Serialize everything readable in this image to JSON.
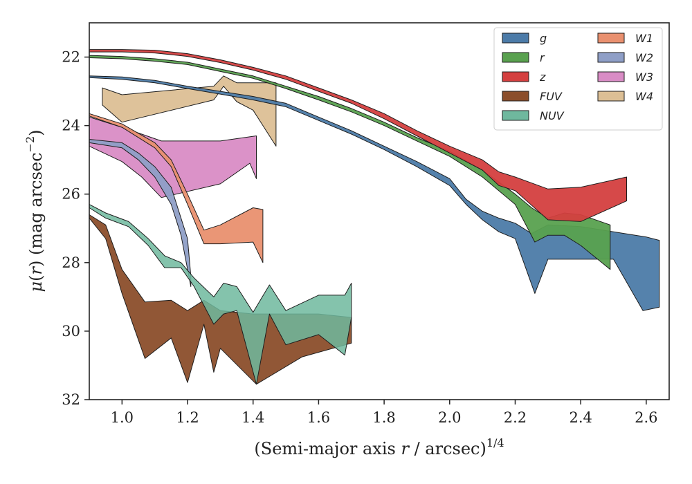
{
  "chart_data": {
    "type": "area",
    "xlabel": "(Semi-major axis r / arcsec)^{1/4}",
    "xlabel_parts": {
      "prefix": "(Semi-major axis ",
      "var": "r",
      "suffix": " / arcsec)",
      "exponent": "1/4"
    },
    "ylabel": "μ(r) (mag arcsec^{-2})",
    "ylabel_parts": {
      "mu": "μ",
      "open": "(",
      "var": "r",
      "close": ") (mag arcsec",
      "exponent": "−2",
      "end": ")"
    },
    "xlim": [
      0.9,
      2.67
    ],
    "ylim": [
      32,
      21
    ],
    "y_inverted": true,
    "xticks": [
      "1.0",
      "1.2",
      "1.4",
      "1.6",
      "1.8",
      "2.0",
      "2.2",
      "2.4",
      "2.6"
    ],
    "yticks": [
      "22",
      "24",
      "26",
      "28",
      "30",
      "32"
    ],
    "legend": {
      "position": "top-right",
      "columns": 2
    },
    "grid": false,
    "series": [
      {
        "name": "g",
        "color": "#4c7ba8",
        "upper": [
          [
            0.9,
            22.55
          ],
          [
            1.0,
            22.58
          ],
          [
            1.1,
            22.68
          ],
          [
            1.2,
            22.85
          ],
          [
            1.3,
            23.0
          ],
          [
            1.4,
            23.15
          ],
          [
            1.5,
            23.35
          ],
          [
            1.6,
            23.75
          ],
          [
            1.7,
            24.15
          ],
          [
            1.8,
            24.6
          ],
          [
            1.9,
            25.05
          ],
          [
            2.0,
            25.55
          ],
          [
            2.05,
            26.15
          ],
          [
            2.1,
            26.5
          ],
          [
            2.15,
            26.7
          ],
          [
            2.2,
            26.85
          ],
          [
            2.25,
            27.15
          ],
          [
            2.3,
            26.9
          ],
          [
            2.4,
            26.95
          ],
          [
            2.5,
            27.1
          ],
          [
            2.6,
            27.25
          ],
          [
            2.64,
            27.35
          ]
        ],
        "lower": [
          [
            0.9,
            22.6
          ],
          [
            1.0,
            22.65
          ],
          [
            1.1,
            22.75
          ],
          [
            1.2,
            22.92
          ],
          [
            1.3,
            23.08
          ],
          [
            1.4,
            23.25
          ],
          [
            1.5,
            23.45
          ],
          [
            1.6,
            23.85
          ],
          [
            1.7,
            24.25
          ],
          [
            1.8,
            24.7
          ],
          [
            1.9,
            25.2
          ],
          [
            2.0,
            25.75
          ],
          [
            2.05,
            26.3
          ],
          [
            2.1,
            26.75
          ],
          [
            2.15,
            27.1
          ],
          [
            2.2,
            27.3
          ],
          [
            2.26,
            28.9
          ],
          [
            2.3,
            27.9
          ],
          [
            2.4,
            27.9
          ],
          [
            2.5,
            27.9
          ],
          [
            2.59,
            29.4
          ],
          [
            2.64,
            29.3
          ]
        ]
      },
      {
        "name": "r",
        "color": "#59a14f",
        "upper": [
          [
            0.9,
            21.95
          ],
          [
            1.0,
            21.98
          ],
          [
            1.1,
            22.05
          ],
          [
            1.2,
            22.15
          ],
          [
            1.3,
            22.35
          ],
          [
            1.4,
            22.55
          ],
          [
            1.5,
            22.85
          ],
          [
            1.6,
            23.15
          ],
          [
            1.7,
            23.5
          ],
          [
            1.8,
            23.9
          ],
          [
            1.9,
            24.35
          ],
          [
            2.0,
            24.75
          ],
          [
            2.1,
            25.3
          ],
          [
            2.2,
            26.0
          ],
          [
            2.25,
            26.4
          ],
          [
            2.3,
            26.7
          ],
          [
            2.35,
            26.55
          ],
          [
            2.4,
            26.6
          ],
          [
            2.49,
            26.9
          ]
        ],
        "lower": [
          [
            0.9,
            22.02
          ],
          [
            1.0,
            22.05
          ],
          [
            1.1,
            22.12
          ],
          [
            1.2,
            22.22
          ],
          [
            1.3,
            22.42
          ],
          [
            1.4,
            22.62
          ],
          [
            1.5,
            22.92
          ],
          [
            1.6,
            23.25
          ],
          [
            1.7,
            23.6
          ],
          [
            1.8,
            24.0
          ],
          [
            1.9,
            24.45
          ],
          [
            2.0,
            24.9
          ],
          [
            2.1,
            25.5
          ],
          [
            2.2,
            26.3
          ],
          [
            2.26,
            27.4
          ],
          [
            2.3,
            27.2
          ],
          [
            2.35,
            27.2
          ],
          [
            2.4,
            27.5
          ],
          [
            2.49,
            28.2
          ]
        ]
      },
      {
        "name": "z",
        "color": "#d43f3f",
        "upper": [
          [
            0.9,
            21.78
          ],
          [
            1.0,
            21.78
          ],
          [
            1.1,
            21.8
          ],
          [
            1.2,
            21.9
          ],
          [
            1.3,
            22.08
          ],
          [
            1.4,
            22.3
          ],
          [
            1.5,
            22.55
          ],
          [
            1.6,
            22.9
          ],
          [
            1.7,
            23.25
          ],
          [
            1.8,
            23.65
          ],
          [
            1.9,
            24.15
          ],
          [
            2.0,
            24.6
          ],
          [
            2.1,
            25.0
          ],
          [
            2.15,
            25.35
          ],
          [
            2.2,
            25.5
          ],
          [
            2.3,
            25.85
          ],
          [
            2.4,
            25.8
          ],
          [
            2.54,
            25.5
          ]
        ],
        "lower": [
          [
            0.9,
            21.85
          ],
          [
            1.0,
            21.85
          ],
          [
            1.1,
            21.88
          ],
          [
            1.2,
            21.98
          ],
          [
            1.3,
            22.16
          ],
          [
            1.4,
            22.38
          ],
          [
            1.5,
            22.65
          ],
          [
            1.6,
            23.0
          ],
          [
            1.7,
            23.35
          ],
          [
            1.8,
            23.8
          ],
          [
            1.9,
            24.3
          ],
          [
            2.0,
            24.8
          ],
          [
            2.1,
            25.3
          ],
          [
            2.15,
            25.75
          ],
          [
            2.2,
            25.9
          ],
          [
            2.3,
            26.75
          ],
          [
            2.4,
            26.8
          ],
          [
            2.54,
            26.2
          ]
        ]
      },
      {
        "name": "FUV",
        "color": "#8b4e2b",
        "upper": [
          [
            0.9,
            26.6
          ],
          [
            0.95,
            26.9
          ],
          [
            1.0,
            28.2
          ],
          [
            1.07,
            29.15
          ],
          [
            1.15,
            29.1
          ],
          [
            1.2,
            29.4
          ],
          [
            1.25,
            29.1
          ],
          [
            1.3,
            29.4
          ],
          [
            1.4,
            29.5
          ],
          [
            1.5,
            29.5
          ],
          [
            1.6,
            29.5
          ],
          [
            1.7,
            29.6
          ]
        ],
        "lower": [
          [
            0.9,
            26.7
          ],
          [
            0.95,
            27.3
          ],
          [
            1.0,
            28.9
          ],
          [
            1.07,
            30.8
          ],
          [
            1.15,
            30.2
          ],
          [
            1.2,
            31.5
          ],
          [
            1.25,
            29.8
          ],
          [
            1.28,
            31.2
          ],
          [
            1.3,
            30.5
          ],
          [
            1.41,
            31.55
          ],
          [
            1.55,
            30.75
          ],
          [
            1.7,
            30.35
          ]
        ]
      },
      {
        "name": "NUV",
        "color": "#6fb89e",
        "upper": [
          [
            0.9,
            26.3
          ],
          [
            0.95,
            26.55
          ],
          [
            1.02,
            26.8
          ],
          [
            1.08,
            27.3
          ],
          [
            1.13,
            27.8
          ],
          [
            1.18,
            28.0
          ],
          [
            1.22,
            28.45
          ],
          [
            1.28,
            29.0
          ],
          [
            1.31,
            28.6
          ],
          [
            1.35,
            28.7
          ],
          [
            1.4,
            29.45
          ],
          [
            1.45,
            28.65
          ],
          [
            1.5,
            29.4
          ],
          [
            1.6,
            28.95
          ],
          [
            1.68,
            28.95
          ],
          [
            1.7,
            28.6
          ]
        ],
        "lower": [
          [
            0.9,
            26.4
          ],
          [
            0.95,
            26.7
          ],
          [
            1.02,
            26.95
          ],
          [
            1.08,
            27.5
          ],
          [
            1.13,
            28.15
          ],
          [
            1.18,
            28.15
          ],
          [
            1.22,
            28.7
          ],
          [
            1.28,
            29.8
          ],
          [
            1.31,
            29.5
          ],
          [
            1.35,
            29.4
          ],
          [
            1.41,
            31.55
          ],
          [
            1.45,
            29.5
          ],
          [
            1.5,
            30.4
          ],
          [
            1.6,
            30.1
          ],
          [
            1.68,
            30.7
          ],
          [
            1.7,
            29.6
          ]
        ]
      },
      {
        "name": "W1",
        "color": "#e9906f",
        "upper": [
          [
            0.9,
            23.65
          ],
          [
            1.0,
            23.95
          ],
          [
            1.1,
            24.5
          ],
          [
            1.15,
            25.0
          ],
          [
            1.2,
            26.0
          ],
          [
            1.25,
            27.05
          ],
          [
            1.3,
            26.9
          ],
          [
            1.4,
            26.4
          ],
          [
            1.43,
            26.45
          ]
        ],
        "lower": [
          [
            0.9,
            23.72
          ],
          [
            1.0,
            24.05
          ],
          [
            1.1,
            24.65
          ],
          [
            1.15,
            25.2
          ],
          [
            1.2,
            26.3
          ],
          [
            1.25,
            27.45
          ],
          [
            1.3,
            27.45
          ],
          [
            1.4,
            27.4
          ],
          [
            1.43,
            28.0
          ]
        ]
      },
      {
        "name": "W2",
        "color": "#8f9fc7",
        "upper": [
          [
            0.9,
            24.4
          ],
          [
            1.0,
            24.5
          ],
          [
            1.05,
            24.8
          ],
          [
            1.1,
            25.2
          ],
          [
            1.15,
            25.8
          ],
          [
            1.2,
            27.3
          ],
          [
            1.21,
            28.4
          ]
        ],
        "lower": [
          [
            0.9,
            24.5
          ],
          [
            1.0,
            24.65
          ],
          [
            1.05,
            25.0
          ],
          [
            1.1,
            25.5
          ],
          [
            1.15,
            26.3
          ],
          [
            1.18,
            27.2
          ],
          [
            1.21,
            28.7
          ]
        ]
      },
      {
        "name": "W3",
        "color": "#d98cc5",
        "upper": [
          [
            0.9,
            23.75
          ],
          [
            1.0,
            24.05
          ],
          [
            1.06,
            24.25
          ],
          [
            1.12,
            24.45
          ],
          [
            1.3,
            24.45
          ],
          [
            1.41,
            24.3
          ]
        ],
        "lower": [
          [
            0.9,
            24.6
          ],
          [
            1.0,
            25.05
          ],
          [
            1.06,
            25.5
          ],
          [
            1.12,
            26.1
          ],
          [
            1.3,
            25.7
          ],
          [
            1.39,
            25.1
          ],
          [
            1.41,
            25.55
          ]
        ]
      },
      {
        "name": "W4",
        "color": "#dcbf95",
        "upper": [
          [
            0.94,
            22.9
          ],
          [
            1.0,
            23.1
          ],
          [
            1.28,
            22.85
          ],
          [
            1.31,
            22.55
          ],
          [
            1.35,
            22.75
          ],
          [
            1.4,
            22.75
          ],
          [
            1.47,
            22.75
          ]
        ],
        "lower": [
          [
            0.94,
            23.4
          ],
          [
            1.0,
            23.9
          ],
          [
            1.28,
            23.25
          ],
          [
            1.31,
            22.85
          ],
          [
            1.35,
            23.3
          ],
          [
            1.4,
            23.55
          ],
          [
            1.47,
            24.6
          ]
        ]
      }
    ]
  }
}
